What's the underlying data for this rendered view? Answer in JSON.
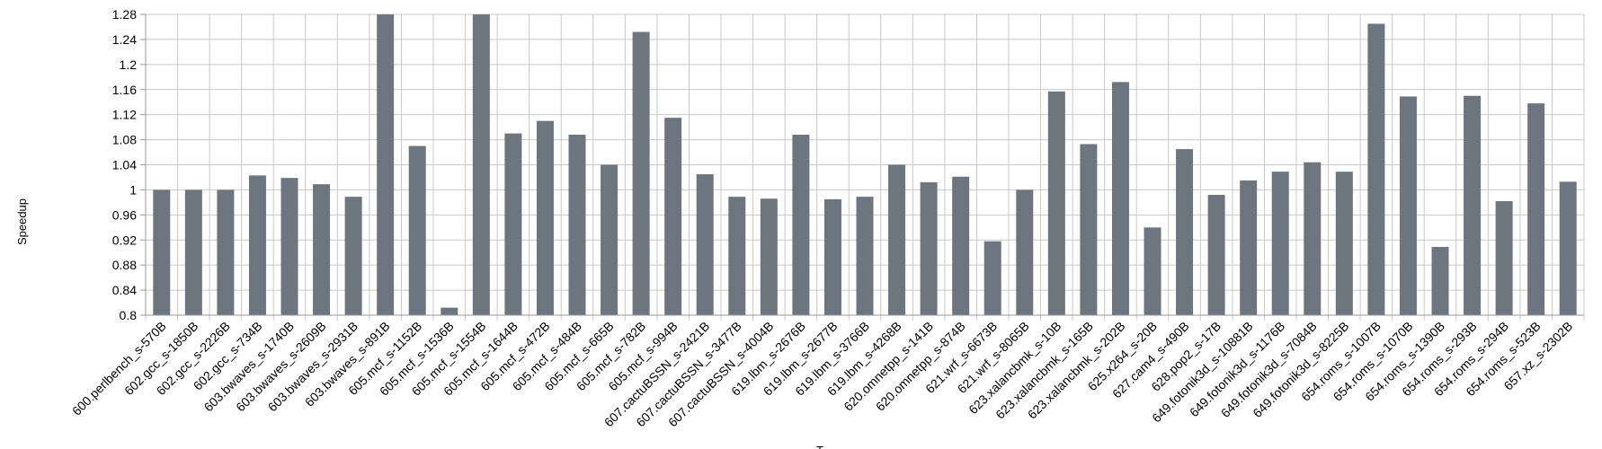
{
  "chart_data": {
    "type": "bar",
    "title": "",
    "xlabel": "T",
    "ylabel": "Speedup",
    "ylim": [
      0.8,
      1.28
    ],
    "ytick_step": 0.04,
    "yticks": [
      "0.8",
      "0.84",
      "0.88",
      "0.92",
      "0.96",
      "1",
      "1.04",
      "1.08",
      "1.12",
      "1.16",
      "1.2",
      "1.24",
      "1.28"
    ],
    "grid": true,
    "legend": "none",
    "bar_color": "#6d767e",
    "categories": [
      "600.perlbench_s-570B",
      "602.gcc_s-1850B",
      "602.gcc_s-2226B",
      "602.gcc_s-734B",
      "603.bwaves_s-1740B",
      "603.bwaves_s-2609B",
      "603.bwaves_s-2931B",
      "603.bwaves_s-891B",
      "605.mcf_s-1152B",
      "605.mcf_s-1536B",
      "605.mcf_s-1554B",
      "605.mcf_s-1644B",
      "605.mcf_s-472B",
      "605.mcf_s-484B",
      "605.mcf_s-665B",
      "605.mcf_s-782B",
      "605.mcf_s-994B",
      "607.cactuBSSN_s-2421B",
      "607.cactuBSSN_s-3477B",
      "607.cactuBSSN_s-4004B",
      "619.lbm_s-2676B",
      "619.lbm_s-2677B",
      "619.lbm_s-3766B",
      "619.lbm_s-4268B",
      "620.omnetpp_s-141B",
      "620.omnetpp_s-874B",
      "621.wrf_s-6673B",
      "621.wrf_s-8065B",
      "623.xalancbmk_s-10B",
      "623.xalancbmk_s-165B",
      "623.xalancbmk_s-202B",
      "625.x264_s-20B",
      "627.cam4_s-490B",
      "628.pop2_s-17B",
      "649.fotonik3d_s-10881B",
      "649.fotonik3d_s-1176B",
      "649.fotonik3d_s-7084B",
      "649.fotonik3d_s-8225B",
      "654.roms_s-1007B",
      "654.roms_s-1070B",
      "654.roms_s-1390B",
      "654.roms_s-293B",
      "654.roms_s-294B",
      "654.roms_s-523B",
      "657.xz_s-2302B"
    ],
    "values": [
      1.0,
      1.0,
      1.0,
      1.023,
      1.019,
      1.009,
      0.989,
      1.28,
      1.07,
      0.812,
      1.28,
      1.09,
      1.11,
      1.088,
      1.04,
      1.252,
      1.115,
      1.025,
      0.989,
      0.986,
      1.088,
      0.985,
      0.989,
      1.04,
      1.012,
      1.021,
      0.918,
      1.0,
      1.157,
      1.073,
      1.172,
      0.94,
      1.065,
      0.992,
      1.015,
      1.029,
      1.044,
      1.029,
      1.265,
      1.149,
      0.909,
      1.15,
      0.982,
      1.138,
      1.013
    ]
  }
}
